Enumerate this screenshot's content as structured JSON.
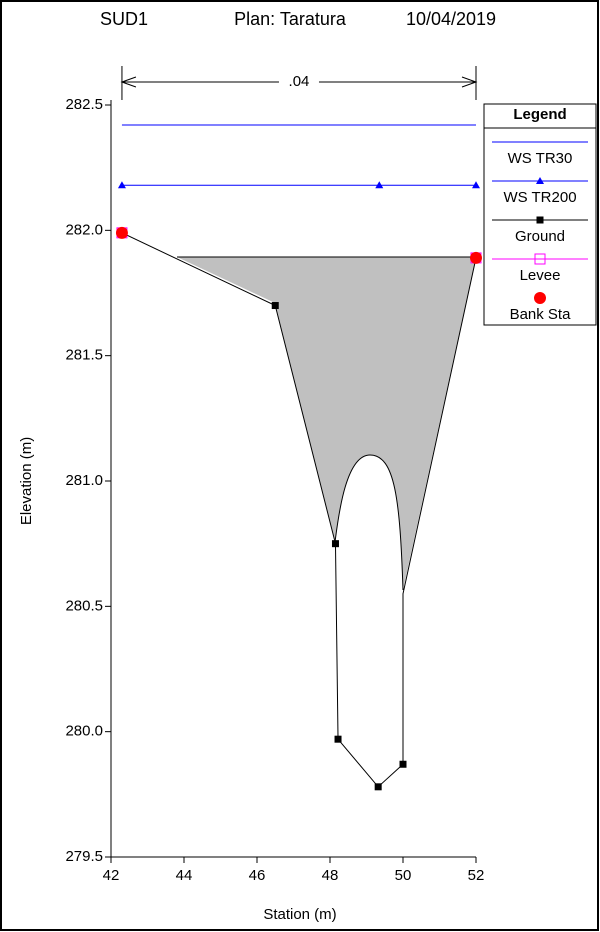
{
  "chart_data": {
    "type": "line",
    "title": [
      "SUD1",
      "Plan: Taratura",
      "10/04/2019"
    ],
    "xlabel": "Station (m)",
    "ylabel": "Elevation (m)",
    "xlim": [
      42,
      52
    ],
    "xticks": [
      42,
      44,
      46,
      48,
      50,
      52
    ],
    "ylim": [
      279.5,
      282.5
    ],
    "yticks": [
      279.5,
      {
        "value": 280,
        "label": "280.0"
      },
      280.5,
      {
        "value": 281,
        "label": "281.0"
      },
      281.5,
      {
        "value": 282,
        "label": "282.0"
      },
      282.5
    ],
    "annotation": {
      "text": ".04",
      "x": [
        42.3,
        52
      ]
    },
    "legend_title": "Legend",
    "legend": "outside-right",
    "series": [
      {
        "name": "WS TR30",
        "color": "#0000ff",
        "marker": "none",
        "line": true,
        "x": [
          42.3,
          52
        ],
        "values": [
          282.42,
          282.42
        ]
      },
      {
        "name": "WS TR200",
        "color": "#0000ff",
        "marker": "triangle",
        "line": true,
        "x": [
          42.3,
          49.35,
          52
        ],
        "values": [
          282.18,
          282.18,
          282.18
        ]
      },
      {
        "name": "Ground",
        "color": "#000000",
        "marker": "square",
        "line": true,
        "x": [
          42.3,
          46.5,
          48.15,
          48.22,
          49.32,
          50.0,
          50.0,
          52
        ],
        "values": [
          281.99,
          281.7,
          280.75,
          279.97,
          279.78,
          279.87,
          280.55,
          281.89
        ],
        "markers": [
          true,
          true,
          true,
          true,
          true,
          true,
          false,
          true
        ]
      },
      {
        "name": "Levee",
        "color": "#ff00ff",
        "marker": "open-square",
        "line": false,
        "x": [
          42.3,
          52
        ],
        "values": [
          281.99,
          281.89
        ]
      },
      {
        "name": "Bank Sta",
        "color": "#ff0000",
        "marker": "circle",
        "line": false,
        "x": [
          42.3,
          52
        ],
        "values": [
          281.99,
          281.89
        ]
      }
    ]
  }
}
